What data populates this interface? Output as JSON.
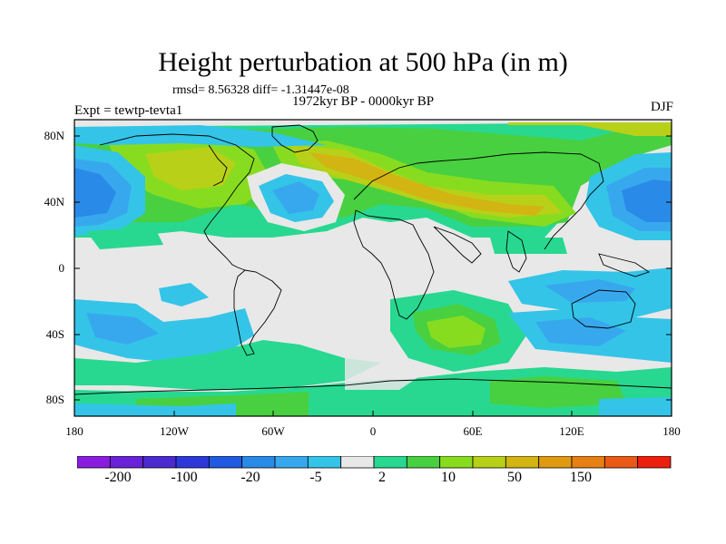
{
  "title": "Height perturbation at 500 hPa (in m)",
  "stats": "rmsd= 8.56328 diff= -1.31447e-08",
  "period": "1972kyr BP - 0000kyr BP",
  "experiment": "Expt = tewtp-tevta1",
  "season": "DJF",
  "lat_labels": [
    "80N",
    "40N",
    "0",
    "40S",
    "80S"
  ],
  "lon_labels": [
    "180",
    "120W",
    "60W",
    "0",
    "60E",
    "120E",
    "180"
  ],
  "colorbar": {
    "colors": [
      "#8a1de0",
      "#6a22d8",
      "#4b2ad0",
      "#2d38d8",
      "#1f5ae0",
      "#2a8ae8",
      "#38a8ee",
      "#34c4e8",
      "#e8e8e8",
      "#28d890",
      "#48d040",
      "#88dc20",
      "#b8d018",
      "#d2b412",
      "#e09a12",
      "#e68014",
      "#ea5a16",
      "#ec1e0e"
    ],
    "labels": [
      "-200",
      "-100",
      "-20",
      "-5",
      "2",
      "10",
      "50",
      "150"
    ]
  },
  "palette": {
    "neutral": "#e8e8e8",
    "light_cyan": "#34c4e8",
    "cyan": "#38a8ee",
    "blue": "#2a8ae8",
    "deep_blue": "#1f5ae0",
    "teal_green": "#28d890",
    "green": "#48d040",
    "yellow_green": "#88dc20",
    "olive": "#b8d018",
    "gold": "#d2b412"
  }
}
